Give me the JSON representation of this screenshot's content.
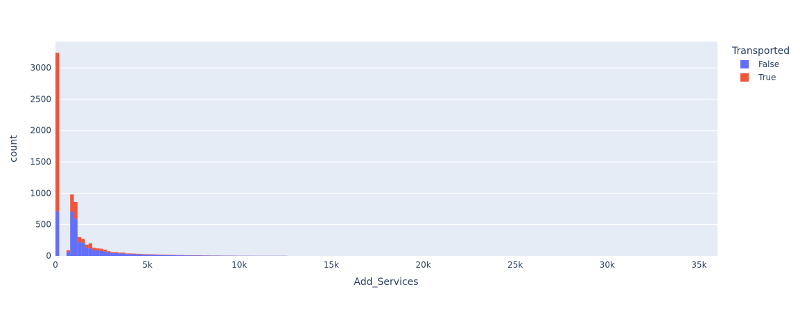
{
  "chart_data": {
    "type": "bar",
    "stacked": true,
    "xlabel": "Add_Services",
    "ylabel": "count",
    "xlim": [
      0,
      36000
    ],
    "ylim": [
      0,
      3420
    ],
    "x_ticks": [
      0,
      5000,
      10000,
      15000,
      20000,
      25000,
      30000,
      35000
    ],
    "x_tick_labels": [
      "0",
      "5k",
      "10k",
      "15k",
      "20k",
      "25k",
      "30k",
      "35k"
    ],
    "y_ticks": [
      0,
      500,
      1000,
      1500,
      2000,
      2500,
      3000
    ],
    "y_tick_labels": [
      "0",
      "500",
      "1000",
      "1500",
      "2000",
      "2500",
      "3000"
    ],
    "bin_width": 200,
    "x": [
      0,
      200,
      400,
      600,
      800,
      1000,
      1200,
      1400,
      1600,
      1800,
      2000,
      2200,
      2400,
      2600,
      2800,
      3000,
      3200,
      3400,
      3600,
      3800,
      4000,
      4200,
      4400,
      4600,
      4800,
      5000,
      5200,
      5400,
      5600,
      5800,
      6000,
      6200,
      6400,
      6600,
      6800,
      7000,
      7200,
      7400,
      7600,
      7800,
      8000,
      8200,
      8400,
      8600,
      8800,
      9000,
      9200,
      9400,
      9600,
      9800,
      10000,
      10200,
      10400,
      10600,
      10800,
      11000,
      11200,
      11400,
      11600,
      11800,
      12000,
      12200,
      12400
    ],
    "series": [
      {
        "name": "False",
        "color": "#636efa",
        "values": [
          710,
          0,
          0,
          60,
          710,
          590,
          220,
          210,
          130,
          120,
          90,
          90,
          80,
          70,
          55,
          45,
          45,
          40,
          40,
          30,
          30,
          28,
          25,
          22,
          20,
          20,
          18,
          16,
          15,
          14,
          14,
          12,
          11,
          10,
          10,
          9,
          9,
          8,
          8,
          7,
          6,
          6,
          5,
          5,
          5,
          4,
          4,
          4,
          4,
          3,
          3,
          3,
          3,
          3,
          2,
          2,
          2,
          2,
          2,
          2,
          2,
          2,
          2
        ]
      },
      {
        "name": "True",
        "color": "#ef553b",
        "values": [
          2530,
          0,
          0,
          30,
          270,
          270,
          80,
          60,
          50,
          80,
          40,
          30,
          35,
          30,
          20,
          15,
          15,
          12,
          12,
          10,
          10,
          9,
          9,
          8,
          8,
          7,
          7,
          6,
          6,
          5,
          5,
          5,
          4,
          4,
          4,
          3,
          3,
          3,
          3,
          3,
          2,
          2,
          2,
          2,
          2,
          2,
          2,
          2,
          1,
          1,
          1,
          1,
          1,
          1,
          1,
          1,
          1,
          1,
          1,
          1,
          1,
          1,
          1
        ]
      }
    ],
    "legend": {
      "title": "Transported",
      "placement": "top-right",
      "entries": [
        "False",
        "True"
      ]
    },
    "grid": true,
    "colors": {
      "plot_bg": "#e5ecf6",
      "grid": "#ffffff",
      "text": "#2a3f5f"
    }
  }
}
